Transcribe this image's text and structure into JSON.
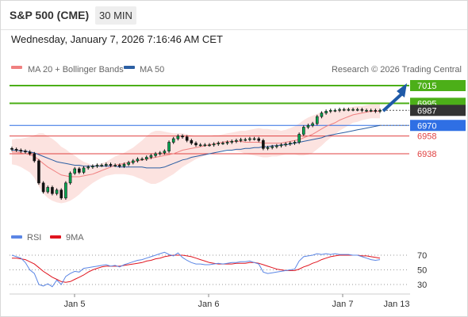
{
  "header": {
    "title": "S&P 500 (CME)",
    "interval": "30 MIN",
    "datetime": "Wednesday, January 7, 2026 7:16:46 AM CET"
  },
  "legend": {
    "ma20": {
      "label": "MA 20 + Bollinger Bands",
      "color": "#f08080"
    },
    "ma50": {
      "label": "MA 50",
      "color": "#2c5fa3"
    },
    "rsi": {
      "label": "RSI",
      "color": "#5b86e5"
    },
    "ma9": {
      "label": "9MA",
      "color": "#e0141e"
    }
  },
  "credit": "Research © 2026 Trading Central",
  "chart_data": [
    {
      "type": "candlestick",
      "ylim": [
        6884,
        7024
      ],
      "x_ticks": [
        "Jan 5",
        "Jan 6",
        "Jan 7",
        "Jan 13"
      ],
      "levels": [
        {
          "value": 7015,
          "label": "7015",
          "kind": "resistance",
          "color": "#4caf18"
        },
        {
          "value": 6995,
          "label": "6995",
          "kind": "resistance",
          "color": "#4caf18"
        },
        {
          "value": 6987,
          "label": "6987",
          "kind": "last-price",
          "color": "#333333"
        },
        {
          "value": 6970,
          "label": "6970",
          "kind": "pivot",
          "color": "#2f6fe4"
        },
        {
          "value": 6958,
          "label": "6958",
          "kind": "support",
          "color": "#e04040"
        },
        {
          "value": 6938,
          "label": "6938",
          "kind": "support",
          "color": "#e04040"
        }
      ],
      "close": [
        6943,
        6942,
        6941,
        6940,
        6938,
        6930,
        6905,
        6895,
        6900,
        6893,
        6897,
        6888,
        6905,
        6916,
        6921,
        6917,
        6922,
        6923,
        6924,
        6925,
        6925,
        6926,
        6925,
        6925,
        6924,
        6926,
        6928,
        6930,
        6932,
        6932,
        6934,
        6936,
        6938,
        6939,
        6941,
        6951,
        6955,
        6958,
        6957,
        6953,
        6950,
        6948,
        6948,
        6948,
        6948,
        6949,
        6950,
        6950,
        6951,
        6952,
        6953,
        6954,
        6954,
        6955,
        6955,
        6953,
        6944,
        6945,
        6946,
        6947,
        6948,
        6949,
        6950,
        6951,
        6960,
        6968,
        6970,
        6972,
        6980,
        6984,
        6986,
        6987,
        6987,
        6988,
        6988,
        6988,
        6988,
        6988,
        6987,
        6987,
        6987,
        6986,
        6987
      ],
      "ma20": [
        6940,
        6940,
        6939,
        6938,
        6937,
        6935,
        6931,
        6927,
        6923,
        6920,
        6917,
        6914,
        6913,
        6912,
        6912,
        6912,
        6913,
        6914,
        6915,
        6917,
        6919,
        6921,
        6923,
        6925,
        6926,
        6927,
        6928,
        6929,
        6930,
        6931,
        6932,
        6933,
        6934,
        6935,
        6936,
        6937,
        6938,
        6940,
        6942,
        6943,
        6944,
        6945,
        6946,
        6947,
        6948,
        6949,
        6950,
        6951,
        6952,
        6952,
        6952,
        6952,
        6951,
        6951,
        6951,
        6951,
        6950,
        6950,
        6950,
        6950,
        6950,
        6951,
        6952,
        6953,
        6954,
        6956,
        6958,
        6960,
        6963,
        6966,
        6969,
        6971,
        6973,
        6976,
        6978,
        6980,
        6982,
        6983,
        6984,
        6985,
        6986,
        6986,
        6986
      ],
      "ma50": [
        6942,
        6942,
        6941,
        6941,
        6940,
        6939,
        6937,
        6935,
        6933,
        6931,
        6929,
        6928,
        6927,
        6926,
        6925,
        6925,
        6924,
        6924,
        6924,
        6924,
        6924,
        6924,
        6924,
        6924,
        6923,
        6923,
        6923,
        6923,
        6923,
        6923,
        6922,
        6922,
        6922,
        6922,
        6923,
        6925,
        6927,
        6929,
        6931,
        6932,
        6934,
        6935,
        6936,
        6937,
        6938,
        6939,
        6940,
        6941,
        6942,
        6942,
        6943,
        6943,
        6944,
        6944,
        6945,
        6945,
        6946,
        6946,
        6947,
        6947,
        6948,
        6948,
        6949,
        6950,
        6951,
        6952,
        6953,
        6954,
        6955,
        6956,
        6958,
        6959,
        6960,
        6961,
        6962,
        6963,
        6964,
        6965,
        6966,
        6967,
        6968,
        6969,
        6970
      ],
      "bollinger_width": [
        14,
        15,
        16,
        18,
        20,
        24,
        30,
        34,
        35,
        35,
        34,
        32,
        30,
        27,
        24,
        20,
        16,
        13,
        10,
        9,
        8,
        8,
        9,
        10,
        11,
        12,
        14,
        16,
        19,
        22,
        26,
        29,
        30,
        29,
        27,
        25,
        23,
        21,
        19,
        17,
        15,
        13,
        12,
        11,
        10,
        10,
        9,
        9,
        9,
        10,
        11,
        12,
        13,
        14,
        15,
        16,
        16,
        16,
        15,
        15,
        14,
        14,
        15,
        16,
        18,
        20,
        21,
        21,
        20,
        19,
        17,
        15,
        13,
        12,
        11,
        10,
        9,
        9,
        8,
        8,
        8,
        8,
        8
      ]
    },
    {
      "type": "line",
      "name": "RSI",
      "y_ticks": [
        70,
        50,
        30
      ],
      "ylim": [
        20,
        80
      ],
      "rsi": [
        70,
        68,
        66,
        60,
        50,
        45,
        30,
        28,
        31,
        27,
        36,
        30,
        41,
        45,
        48,
        47,
        52,
        53,
        54,
        55,
        56,
        57,
        55,
        56,
        54,
        57,
        59,
        61,
        63,
        64,
        66,
        68,
        70,
        72,
        74,
        71,
        69,
        73,
        67,
        63,
        60,
        58,
        58,
        57,
        57,
        58,
        59,
        58,
        59,
        60,
        60,
        61,
        61,
        62,
        60,
        58,
        47,
        45,
        46,
        47,
        48,
        49,
        50,
        51,
        62,
        68,
        69,
        70,
        72,
        71,
        72,
        71,
        72,
        71,
        71,
        71,
        70,
        70,
        68,
        66,
        64,
        63,
        64
      ],
      "ma9": [
        66,
        66,
        65,
        64,
        61,
        58,
        53,
        48,
        44,
        40,
        37,
        34,
        33,
        34,
        37,
        40,
        43,
        47,
        50,
        52,
        54,
        55,
        55,
        55,
        55,
        56,
        57,
        58,
        59,
        60,
        62,
        63,
        65,
        66,
        68,
        69,
        70,
        70,
        70,
        69,
        68,
        66,
        64,
        62,
        60,
        59,
        58,
        58,
        58,
        58,
        59,
        59,
        59,
        60,
        60,
        59,
        57,
        55,
        53,
        51,
        50,
        49,
        49,
        49,
        51,
        54,
        56,
        59,
        61,
        64,
        66,
        68,
        69,
        70,
        70,
        70,
        70,
        70,
        69,
        69,
        68,
        67,
        66
      ]
    }
  ]
}
